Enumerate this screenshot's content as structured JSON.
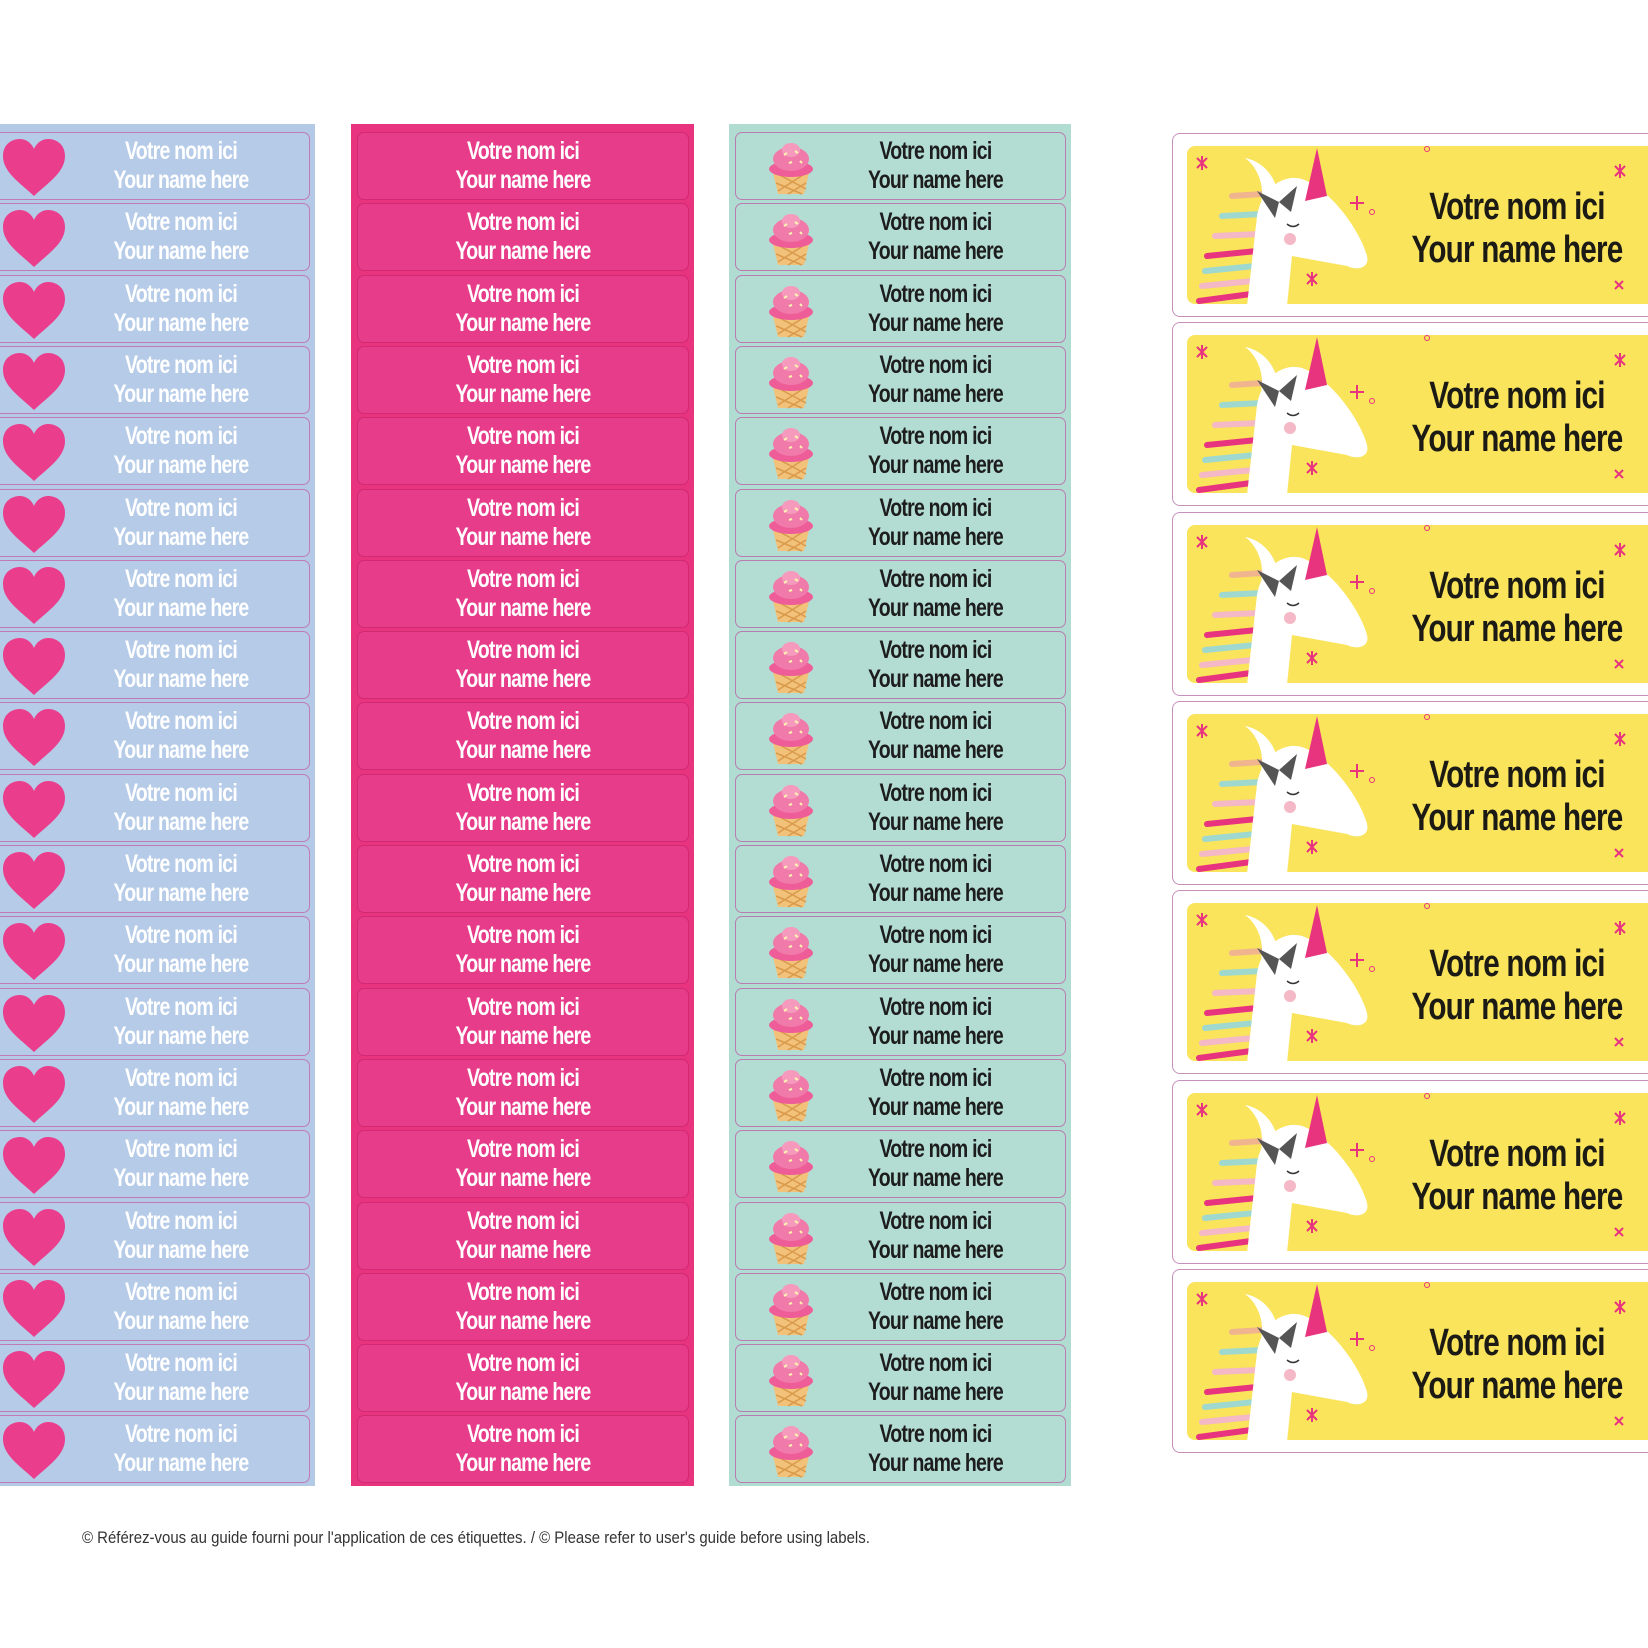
{
  "colors": {
    "blue_sheet": "#b3c9e6",
    "pink_sheet": "#e8337f",
    "teal_sheet": "#b0dcd2",
    "unicorn_bg": "#f9e45b",
    "heart": "#ea3d8c"
  },
  "columns": [
    {
      "id": "blue",
      "icon": "heart-icon",
      "labels": [
        [
          "Votre nom ici",
          "Your name here"
        ],
        [
          "Votre nom ici",
          "Your name here"
        ],
        [
          "Votre nom ici",
          "Your name here"
        ],
        [
          "Votre nom ici",
          "Your name here"
        ],
        [
          "Votre nom ici",
          "Your name here"
        ],
        [
          "Votre nom ici",
          "Your name here"
        ],
        [
          "Votre nom ici",
          "Your name here"
        ],
        [
          "Votre nom ici",
          "Your name here"
        ],
        [
          "Votre nom ici",
          "Your name here"
        ],
        [
          "Votre nom ici",
          "Your name here"
        ],
        [
          "Votre nom ici",
          "Your name here"
        ],
        [
          "Votre nom ici",
          "Your name here"
        ],
        [
          "Votre nom ici",
          "Your name here"
        ],
        [
          "Votre nom ici",
          "Your name here"
        ],
        [
          "Votre nom ici",
          "Your name here"
        ],
        [
          "Votre nom ici",
          "Your name here"
        ],
        [
          "Votre nom ici",
          "Your name here"
        ],
        [
          "Votre nom ici",
          "Your name here"
        ],
        [
          "Votre nom ici",
          "Your name here"
        ]
      ]
    },
    {
      "id": "pink",
      "icon": "",
      "labels": [
        [
          "Votre nom ici",
          "Your name here"
        ],
        [
          "Votre nom ici",
          "Your name here"
        ],
        [
          "Votre nom ici",
          "Your name here"
        ],
        [
          "Votre nom ici",
          "Your name here"
        ],
        [
          "Votre nom ici",
          "Your name here"
        ],
        [
          "Votre nom ici",
          "Your name here"
        ],
        [
          "Votre nom ici",
          "Your name here"
        ],
        [
          "Votre nom ici",
          "Your name here"
        ],
        [
          "Votre nom ici",
          "Your name here"
        ],
        [
          "Votre nom ici",
          "Your name here"
        ],
        [
          "Votre nom ici",
          "Your name here"
        ],
        [
          "Votre nom ici",
          "Your name here"
        ],
        [
          "Votre nom ici",
          "Your name here"
        ],
        [
          "Votre nom ici",
          "Your name here"
        ],
        [
          "Votre nom ici",
          "Your name here"
        ],
        [
          "Votre nom ici",
          "Your name here"
        ],
        [
          "Votre nom ici",
          "Your name here"
        ],
        [
          "Votre nom ici",
          "Your name here"
        ],
        [
          "Votre nom ici",
          "Your name here"
        ]
      ]
    },
    {
      "id": "teal",
      "icon": "cupcake-icon",
      "labels": [
        [
          "Votre nom ici",
          "Your name here"
        ],
        [
          "Votre nom ici",
          "Your name here"
        ],
        [
          "Votre nom ici",
          "Your name here"
        ],
        [
          "Votre nom ici",
          "Your name here"
        ],
        [
          "Votre nom ici",
          "Your name here"
        ],
        [
          "Votre nom ici",
          "Your name here"
        ],
        [
          "Votre nom ici",
          "Your name here"
        ],
        [
          "Votre nom ici",
          "Your name here"
        ],
        [
          "Votre nom ici",
          "Your name here"
        ],
        [
          "Votre nom ici",
          "Your name here"
        ],
        [
          "Votre nom ici",
          "Your name here"
        ],
        [
          "Votre nom ici",
          "Your name here"
        ],
        [
          "Votre nom ici",
          "Your name here"
        ],
        [
          "Votre nom ici",
          "Your name here"
        ],
        [
          "Votre nom ici",
          "Your name here"
        ],
        [
          "Votre nom ici",
          "Your name here"
        ],
        [
          "Votre nom ici",
          "Your name here"
        ],
        [
          "Votre nom ici",
          "Your name here"
        ],
        [
          "Votre nom ici",
          "Your name here"
        ]
      ]
    }
  ],
  "unicorn_labels": {
    "icon": "unicorn-icon",
    "labels": [
      [
        "Votre nom ici",
        "Your name here"
      ],
      [
        "Votre nom ici",
        "Your name here"
      ],
      [
        "Votre nom ici",
        "Your name here"
      ],
      [
        "Votre nom ici",
        "Your name here"
      ],
      [
        "Votre nom ici",
        "Your name here"
      ],
      [
        "Votre nom ici",
        "Your name here"
      ],
      [
        "Votre nom ici",
        "Your name here"
      ]
    ]
  },
  "footer": "© Référez-vous au guide fourni pour l'application de ces étiquettes. / © Please refer to user's guide before using labels."
}
